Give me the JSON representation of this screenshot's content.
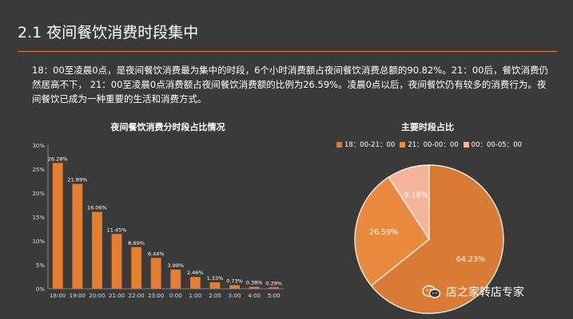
{
  "slide": {
    "title": "2.1 夜间餐饮消费时段集中",
    "paragraph": "18：00至凌晨0点，是夜间餐饮消费最为集中的时段，6个小时消费额占夜间餐饮消费总额的90.82%。21：00后，餐饮消费仍然居高不下， 21：00至凌晨0点消费额占夜间餐饮消费额的比例为26.59%。凌晨0点以后，夜间餐饮仍有较多的消费行为。夜间餐饮已成为一种重要的生活和消费方式。"
  },
  "watermark": {
    "icon": "wechat-icon",
    "text": "店之家转店专家"
  },
  "colors": {
    "background": "#3a3a3a",
    "accent": "#e67e30",
    "bar": "#e67e30",
    "pie": [
      "#d97a35",
      "#ea8a3e",
      "#f4b49a"
    ]
  },
  "chart_data": [
    {
      "type": "bar",
      "title": "夜间餐饮消费分时段占比情况",
      "categories": [
        "18:00",
        "19:00",
        "20:00",
        "21:00",
        "22:00",
        "23:00",
        "0:00",
        "1:00",
        "2:00",
        "3:00",
        "4:00",
        "5:00"
      ],
      "values": [
        26.28,
        21.89,
        16.06,
        11.45,
        8.69,
        6.44,
        3.99,
        2.46,
        1.33,
        0.73,
        0.38,
        0.29
      ],
      "data_labels": [
        "26.28%",
        "21.89%",
        "16.06%",
        "11.45%",
        "8.69%",
        "6.44%",
        "3.99%",
        "2.46%",
        "1.33%",
        "0.73%",
        "0.38%",
        "0.29%"
      ],
      "ylim": [
        0,
        30
      ],
      "yticks": [
        "0%",
        "5%",
        "10%",
        "15%",
        "20%",
        "25%",
        "30%"
      ],
      "grid": false
    },
    {
      "type": "pie",
      "title": "主要时段占比",
      "legend": [
        "18：00-21：00",
        "21：00-00：00",
        "00：00-05：00"
      ],
      "legend_position": "top",
      "values": [
        64.23,
        26.59,
        9.18
      ],
      "data_labels": [
        "64.23%",
        "26.59%",
        "9.18%"
      ]
    }
  ]
}
